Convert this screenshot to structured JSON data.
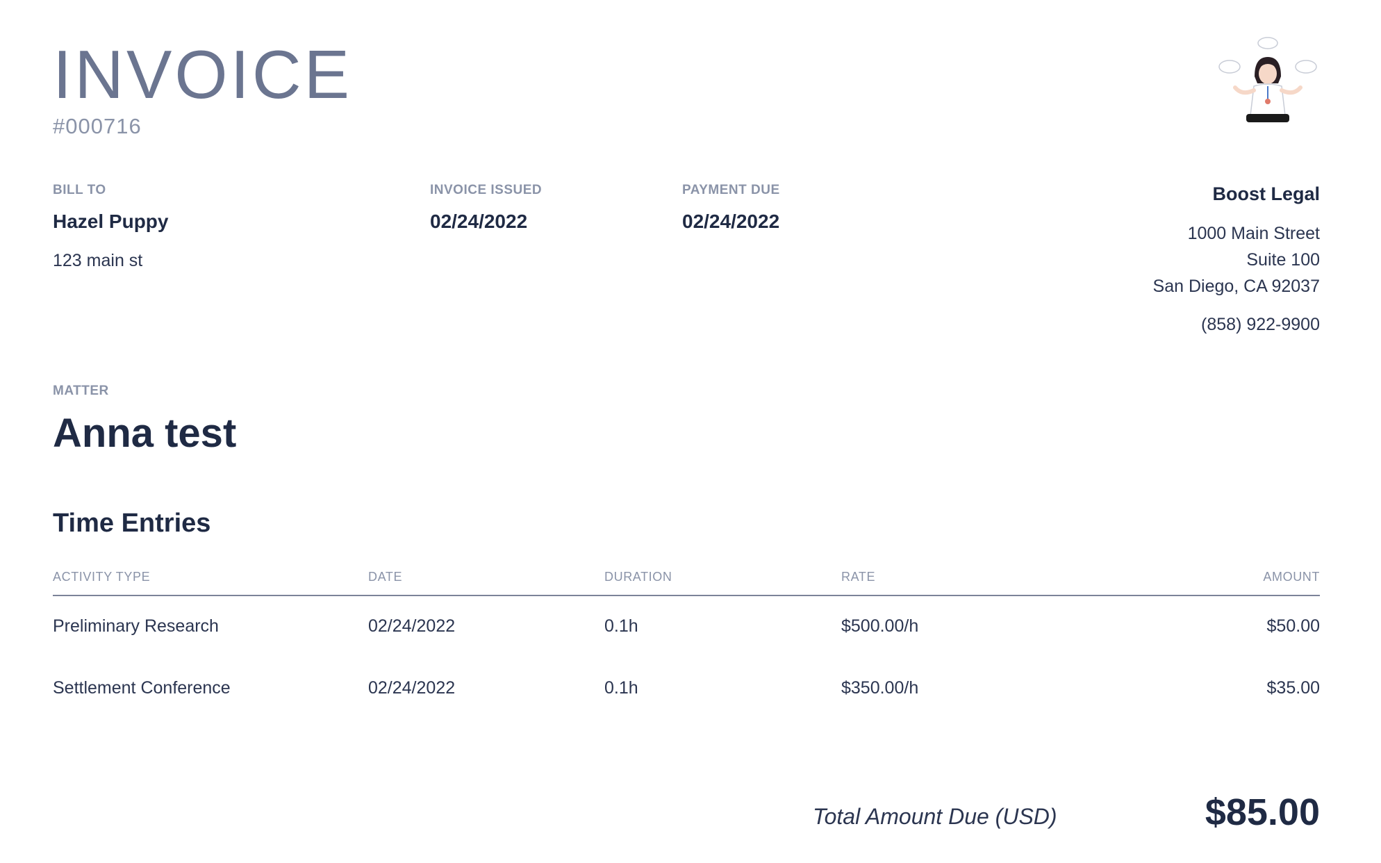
{
  "header": {
    "title": "INVOICE",
    "number": "#000716"
  },
  "bill_to": {
    "label": "BILL TO",
    "name": "Hazel Puppy",
    "address": "123 main st"
  },
  "issued": {
    "label": "INVOICE ISSUED",
    "date": "02/24/2022"
  },
  "due": {
    "label": "PAYMENT DUE",
    "date": "02/24/2022"
  },
  "firm": {
    "name": "Boost Legal",
    "address_line1": "1000 Main Street",
    "address_line2": "Suite 100",
    "address_line3": "San Diego, CA 92037",
    "phone": "(858) 922-9900",
    "logo_icon": "meditating-lawyer-logo"
  },
  "matter": {
    "label": "MATTER",
    "name": "Anna test"
  },
  "time_entries": {
    "title": "Time Entries",
    "columns": [
      "ACTIVITY TYPE",
      "DATE",
      "DURATION",
      "RATE",
      "AMOUNT"
    ],
    "rows": [
      [
        "Preliminary Research",
        "02/24/2022",
        "0.1h",
        "$500.00/h",
        "$50.00"
      ],
      [
        "Settlement Conference",
        "02/24/2022",
        "0.1h",
        "$350.00/h",
        "$35.00"
      ]
    ]
  },
  "total": {
    "label": "Total Amount Due (USD)",
    "value": "$85.00"
  },
  "colors": {
    "text_dark": "#1f2a44",
    "text_muted": "#8a93a8",
    "title_gray": "#6b7590"
  }
}
